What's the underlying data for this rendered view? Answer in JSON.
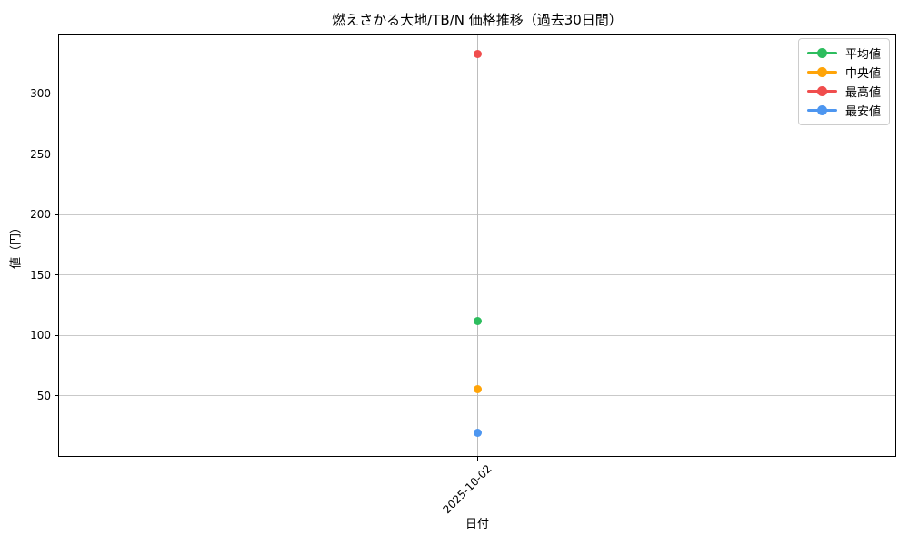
{
  "chart_data": {
    "type": "line",
    "title": "燃えさかる大地/TB/N 価格推移（過去30日間）",
    "xlabel": "日付",
    "ylabel": "値（円）",
    "categories": [
      "2025-10-02"
    ],
    "series": [
      {
        "name": "平均値",
        "values": [
          112
        ],
        "color": "#2dbd5e"
      },
      {
        "name": "中央値",
        "values": [
          55
        ],
        "color": "#ffa408"
      },
      {
        "name": "最高値",
        "values": [
          333
        ],
        "color": "#f04d4d"
      },
      {
        "name": "最安値",
        "values": [
          19
        ],
        "color": "#4d96f0"
      }
    ],
    "ylim": [
      0,
      349
    ],
    "yticks": [
      50,
      100,
      150,
      200,
      250,
      300
    ],
    "grid": true,
    "legend_position": "upper right",
    "marker": "circle",
    "x_tick_rotation": 45,
    "axis_color": "#000000",
    "gridline_color": "#c9c9c9",
    "background_color": "#ffffff"
  }
}
